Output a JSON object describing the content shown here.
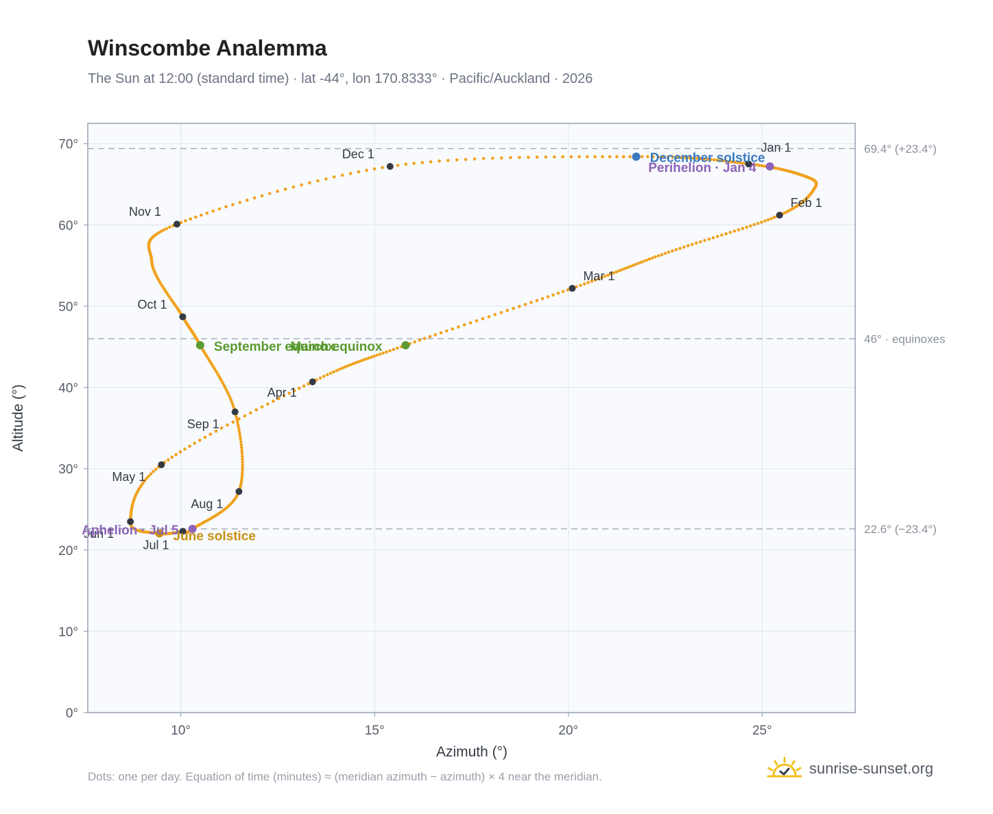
{
  "header": {
    "title": "Winscombe Analemma",
    "subtitle": "The Sun at 12:00 (standard time) · lat -44°, lon 170.8333° · Pacific/Auckland · 2026"
  },
  "footer": {
    "note": "Dots: one per day. Equation of time (minutes) ≈ (meridian azimuth − azimuth) × 4 near the meridian.",
    "brand": "sunrise-sunset.org"
  },
  "colors": {
    "path": "#f0a21e",
    "month_dot": "#333a44",
    "equinox": "#5a9a30",
    "december_solstice": "#3a7ac0",
    "june_solstice": "#c89010",
    "perihelion": "#8e64b8",
    "plot_bg": "#f8fafd",
    "grid": "#e4e8ef",
    "frame": "#98a2b3"
  },
  "chart_data": {
    "type": "scatter",
    "xlabel": "Azimuth (°)",
    "ylabel": "Altitude (°)",
    "xlim": [
      7.6,
      27.4
    ],
    "ylim": [
      0,
      72.5
    ],
    "xticks": [
      10,
      15,
      20,
      25
    ],
    "yticks": [
      0,
      10,
      20,
      30,
      40,
      50,
      60,
      70
    ],
    "xtick_labels": [
      "10°",
      "15°",
      "20°",
      "25°"
    ],
    "ytick_labels": [
      "0°",
      "10°",
      "20°",
      "30°",
      "40°",
      "50°",
      "60°",
      "70°"
    ],
    "grid": true,
    "reference_lines": [
      {
        "y": 69.4,
        "label": "69.4° (+23.4°)"
      },
      {
        "y": 46,
        "label": "46° · equinoxes"
      },
      {
        "y": 22.6,
        "label": "22.6° (−23.4°)"
      }
    ],
    "path_points": [
      [
        24.65,
        67.5
      ],
      [
        26.1,
        66.0
      ],
      [
        26.35,
        64.5
      ],
      [
        25.45,
        61.2
      ],
      [
        22.5,
        56.5
      ],
      [
        20.1,
        52.2
      ],
      [
        15.8,
        45.2
      ],
      [
        13.4,
        40.7
      ],
      [
        9.5,
        30.5
      ],
      [
        8.7,
        23.5
      ],
      [
        9.4,
        22.05
      ],
      [
        10.05,
        22.3
      ],
      [
        10.3,
        22.6
      ],
      [
        11.5,
        27.2
      ],
      [
        11.4,
        37.0
      ],
      [
        10.5,
        45.2
      ],
      [
        10.05,
        48.7
      ],
      [
        9.25,
        55.5
      ],
      [
        9.9,
        60.1
      ],
      [
        15.4,
        67.2
      ],
      [
        21.75,
        68.4
      ],
      [
        24.65,
        67.5
      ]
    ],
    "months": [
      {
        "label": "Jan 1",
        "x": 24.65,
        "y": 67.5
      },
      {
        "label": "Feb 1",
        "x": 25.45,
        "y": 61.2
      },
      {
        "label": "Mar 1",
        "x": 20.1,
        "y": 52.2
      },
      {
        "label": "Apr 1",
        "x": 13.4,
        "y": 40.7
      },
      {
        "label": "May 1",
        "x": 9.5,
        "y": 30.5
      },
      {
        "label": "Jun 1",
        "x": 8.7,
        "y": 23.5
      },
      {
        "label": "Jul 1",
        "x": 10.05,
        "y": 22.3
      },
      {
        "label": "Aug 1",
        "x": 11.5,
        "y": 27.2
      },
      {
        "label": "Sep 1",
        "x": 11.4,
        "y": 37.0
      },
      {
        "label": "Oct 1",
        "x": 10.05,
        "y": 48.7
      },
      {
        "label": "Nov 1",
        "x": 9.9,
        "y": 60.1
      },
      {
        "label": "Dec 1",
        "x": 15.4,
        "y": 67.2
      }
    ],
    "events": [
      {
        "label": "March equinox",
        "x": 15.8,
        "y": 45.2,
        "kind": "equinox"
      },
      {
        "label": "September equinox",
        "x": 10.5,
        "y": 45.2,
        "kind": "equinox"
      },
      {
        "label": "December solstice",
        "x": 21.75,
        "y": 68.4,
        "kind": "december_solstice"
      },
      {
        "label": "June solstice",
        "x": 9.45,
        "y": 22.05,
        "kind": "june_solstice"
      },
      {
        "label": "Perihelion · Jan 4",
        "x": 25.2,
        "y": 67.2,
        "kind": "perihelion"
      },
      {
        "label": "Aphelion · Jul 5",
        "x": 10.3,
        "y": 22.6,
        "kind": "perihelion"
      }
    ]
  }
}
